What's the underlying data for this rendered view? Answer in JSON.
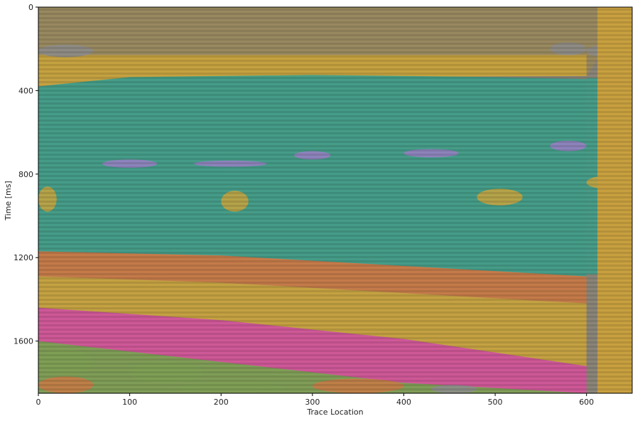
{
  "chart_data": {
    "type": "heatmap",
    "title": "",
    "xlabel": "Trace Location",
    "ylabel": "Time [ms]",
    "xlim": [
      0,
      650
    ],
    "ylim": [
      0,
      1850
    ],
    "y_inverted": true,
    "xticks": [
      0,
      100,
      200,
      300,
      400,
      500,
      600
    ],
    "yticks": [
      0,
      400,
      800,
      1200,
      1600
    ],
    "grid": false,
    "legend": "none",
    "colors": {
      "background_seismic": "#8a8478",
      "upper_tan": "#9a8a5e",
      "gold": "#c9a43e",
      "teal": "#3f9e8a",
      "orange": "#c97a45",
      "magenta": "#d4559a",
      "olive_green": "#7fa055",
      "gray": "#8c8c8c",
      "purple": "#9a7fc4",
      "right_gold": "#c8a03f"
    },
    "facies": [
      {
        "name": "",
        "color_key": "upper_tan",
        "top": [
          [
            0,
            0
          ],
          [
            650,
            0
          ]
        ],
        "base": [
          [
            0,
            330
          ],
          [
            600,
            330
          ]
        ]
      },
      {
        "name": "",
        "color_key": "gold",
        "top": [
          [
            0,
            230
          ],
          [
            600,
            230
          ]
        ],
        "base": [
          [
            0,
            380
          ],
          [
            100,
            340
          ],
          [
            600,
            330
          ]
        ]
      },
      {
        "name": "",
        "color_key": "teal",
        "top": [
          [
            0,
            380
          ],
          [
            100,
            335
          ],
          [
            300,
            325
          ],
          [
            500,
            335
          ],
          [
            600,
            345
          ]
        ],
        "base": [
          [
            0,
            1170
          ],
          [
            200,
            1190
          ],
          [
            400,
            1240
          ],
          [
            600,
            1290
          ]
        ]
      },
      {
        "name": "",
        "color_key": "orange",
        "top": [
          [
            0,
            1170
          ],
          [
            200,
            1190
          ],
          [
            400,
            1240
          ],
          [
            600,
            1290
          ]
        ],
        "base": [
          [
            0,
            1290
          ],
          [
            200,
            1320
          ],
          [
            400,
            1370
          ],
          [
            600,
            1420
          ]
        ]
      },
      {
        "name": "",
        "color_key": "gold",
        "top": [
          [
            0,
            1290
          ],
          [
            200,
            1320
          ],
          [
            400,
            1370
          ],
          [
            600,
            1420
          ]
        ],
        "base": [
          [
            0,
            1440
          ],
          [
            200,
            1500
          ],
          [
            400,
            1590
          ],
          [
            600,
            1720
          ]
        ]
      },
      {
        "name": "",
        "color_key": "magenta",
        "top": [
          [
            0,
            1440
          ],
          [
            200,
            1500
          ],
          [
            400,
            1590
          ],
          [
            600,
            1720
          ]
        ],
        "base": [
          [
            0,
            1600
          ],
          [
            200,
            1700
          ],
          [
            400,
            1800
          ],
          [
            600,
            1850
          ]
        ]
      },
      {
        "name": "",
        "color_key": "olive_green",
        "top": [
          [
            0,
            1600
          ],
          [
            200,
            1700
          ],
          [
            400,
            1800
          ],
          [
            600,
            1850
          ]
        ],
        "base": [
          [
            0,
            1850
          ],
          [
            600,
            1850
          ]
        ]
      }
    ]
  }
}
